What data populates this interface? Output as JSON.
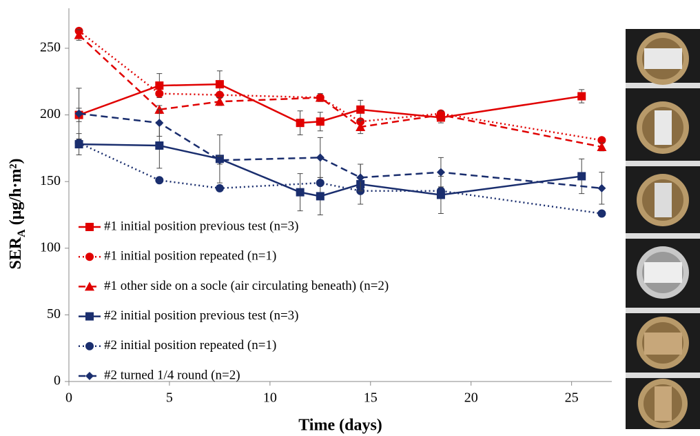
{
  "chart_data": {
    "type": "line",
    "x_label": "Time (days)",
    "y_label": {
      "main": "SER",
      "sub": "A",
      "unit": "(μg/h·m²)"
    },
    "xlim": [
      0,
      27
    ],
    "xticks": [
      0,
      5,
      10,
      15,
      20,
      25
    ],
    "ylim": [
      0,
      280
    ],
    "yticks": [
      0,
      50,
      100,
      150,
      200,
      250
    ],
    "grid": false,
    "legend": "lower left",
    "series": [
      {
        "name": "#1 initial position previous test (n=3)",
        "color": "#e00000",
        "marker": "square",
        "dash": "solid",
        "x": [
          0.5,
          4.5,
          7.5,
          11.5,
          12.5,
          14.5,
          18.5,
          25.5
        ],
        "values": [
          200,
          222,
          223,
          194,
          195,
          204,
          198,
          214
        ],
        "errors": [
          5,
          9,
          10,
          9,
          7,
          7,
          4,
          5
        ]
      },
      {
        "name": "#1 initial position repeated (n=1)",
        "color": "#e00000",
        "marker": "circle",
        "dash": "dotted",
        "x": [
          0.5,
          4.5,
          7.5,
          12.5,
          14.5,
          18.5,
          26.5
        ],
        "values": [
          263,
          216,
          215,
          213,
          195,
          201,
          181
        ]
      },
      {
        "name": "#1 other side on a socle (air circulating beneath) (n=2)",
        "color": "#e00000",
        "marker": "triangle",
        "dash": "dashed",
        "x": [
          0.5,
          4.5,
          7.5,
          12.5,
          14.5,
          18.5,
          26.5
        ],
        "values": [
          260,
          204,
          210,
          213,
          191,
          200,
          176
        ],
        "errors": [
          4,
          3,
          3,
          3,
          5,
          3,
          3
        ]
      },
      {
        "name": "#2 initial position previous test (n=3)",
        "color": "#1a2e6e",
        "marker": "square",
        "dash": "solid",
        "x": [
          0.5,
          4.5,
          7.5,
          11.5,
          12.5,
          14.5,
          18.5,
          25.5
        ],
        "values": [
          178,
          177,
          167,
          142,
          139,
          148,
          140,
          154
        ],
        "errors": [
          8,
          17,
          18,
          14,
          14,
          15,
          14,
          13
        ]
      },
      {
        "name": "#2 initial position repeated (n=1)",
        "color": "#1a2e6e",
        "marker": "circle",
        "dash": "dotted",
        "x": [
          0.5,
          4.5,
          7.5,
          12.5,
          14.5,
          18.5,
          26.5
        ],
        "values": [
          179,
          151,
          145,
          149,
          143,
          143,
          126
        ]
      },
      {
        "name": "#2 turned 1/4 round (n=2)",
        "color": "#1a2e6e",
        "marker": "diamond",
        "dash": "dashed",
        "x": [
          0.5,
          4.5,
          7.5,
          12.5,
          14.5,
          18.5,
          26.5
        ],
        "values": [
          201,
          194,
          166,
          168,
          153,
          157,
          145
        ],
        "errors": [
          19,
          10,
          3,
          15,
          10,
          11,
          12
        ]
      }
    ]
  }
}
